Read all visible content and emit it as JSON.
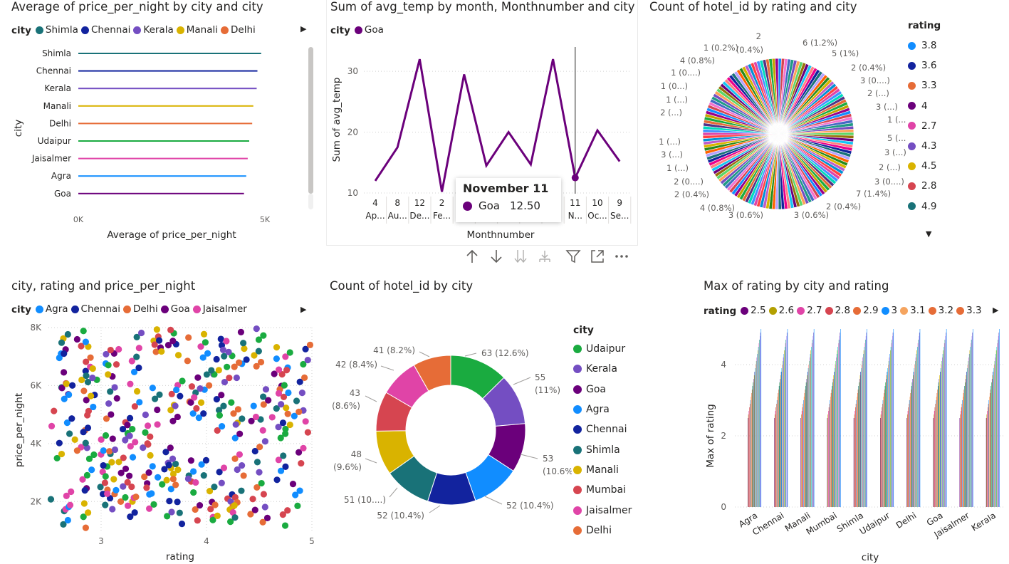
{
  "palette": {
    "Udaipur": "#1AAB40",
    "Kerala": "#744EC2",
    "Goa": "#6B007B",
    "Agra": "#118DFF",
    "Chennai": "#12239E",
    "Shimla": "#197278",
    "Manali": "#D9B300",
    "Mumbai": "#D64550",
    "Jaisalmer": "#E044A7",
    "Delhi": "#E66C37",
    "Kerala_pie": "#744EC2"
  },
  "chart1": {
    "title": "Average of price_per_night by city and city",
    "legend_title": "city",
    "legend": [
      "Shimla",
      "Chennai",
      "Kerala",
      "Manali",
      "Delhi"
    ],
    "chart_data": {
      "type": "bar",
      "orientation": "horizontal",
      "categories": [
        "Shimla",
        "Chennai",
        "Kerala",
        "Manali",
        "Delhi",
        "Udaipur",
        "Jaisalmer",
        "Agra",
        "Goa"
      ],
      "values": [
        4900,
        4800,
        4780,
        4690,
        4660,
        4580,
        4540,
        4500,
        4440
      ],
      "xlabel": "Average of price_per_night",
      "ylabel": "city",
      "xlim": [
        0,
        5000
      ],
      "xticks": [
        "0K",
        "5K"
      ]
    }
  },
  "chart2": {
    "title": "Sum of avg_temp by month, Monthnumber and city",
    "legend_title": "city",
    "legend": [
      "Goa"
    ],
    "chart_data": {
      "type": "line",
      "series": [
        {
          "name": "Goa",
          "values": [
            12,
            17.5,
            32,
            10.2,
            29.5,
            14.5,
            20,
            14.7,
            32,
            12.5,
            20.3,
            15.2
          ]
        }
      ],
      "categories": [
        {
          "num": "4",
          "month": "Ap..."
        },
        {
          "num": "8",
          "month": "Au..."
        },
        {
          "num": "12",
          "month": "De..."
        },
        {
          "num": "2",
          "month": "Fe..."
        },
        {
          "num": "",
          "month": ""
        },
        {
          "num": "",
          "month": ""
        },
        {
          "num": "",
          "month": ""
        },
        {
          "num": "",
          "month": ""
        },
        {
          "num": "",
          "month": ""
        },
        {
          "num": "11",
          "month": "N..."
        },
        {
          "num": "10",
          "month": "Oc..."
        },
        {
          "num": "9",
          "month": "Se..."
        }
      ],
      "ylabel": "Sum of avg_temp",
      "xlabel": "Monthnumber",
      "ylim": [
        10,
        34
      ],
      "yticks": [
        10,
        20,
        30
      ]
    },
    "tooltip": {
      "title": "November 11",
      "series": "Goa",
      "value": "12.50"
    }
  },
  "chart3": {
    "title": "Count of hotel_id by rating and city",
    "legend_title": "rating",
    "legend": [
      "3.8",
      "3.6",
      "3.3",
      "4",
      "2.7",
      "4.3",
      "4.5",
      "2.8",
      "4.9"
    ],
    "legend_colors": [
      "#118DFF",
      "#12239E",
      "#E66C37",
      "#6B007B",
      "#E044A7",
      "#744EC2",
      "#D9B300",
      "#D64550",
      "#197278"
    ],
    "chart_data": {
      "type": "pie",
      "labels": [
        "2",
        "6 (1.2%)",
        "5 (1%)",
        "2 (0.4%)",
        "3 (0....)",
        "2 (...)",
        "3 (...)",
        "1 (...)",
        "5 (...)",
        "3 (...)",
        "2 (...)",
        "3 (0....)",
        "7 (1.4%)",
        "2 (0.4%)",
        "3 (0.6%)",
        "3 (0.6%)",
        "4 (0.8%)",
        "2 (0.4%)",
        "2 (0....)",
        "1 (...)",
        "3 (...)",
        "1 (...)",
        "2 (...)",
        "1 (...)",
        "1 (0...)",
        "1 (0....)",
        "4 (0.8%)",
        "1 (0.2%)",
        "(0.4%)"
      ]
    }
  },
  "chart4": {
    "title": "city, rating and price_per_night",
    "legend_title": "city",
    "legend": [
      "Agra",
      "Chennai",
      "Delhi",
      "Goa",
      "Jaisalmer"
    ],
    "chart_data": {
      "type": "scatter",
      "xlabel": "rating",
      "ylabel": "price_per_night",
      "xlim": [
        2.5,
        5
      ],
      "ylim": [
        1000,
        8000
      ],
      "xticks": [
        3,
        4,
        5
      ],
      "yticks": [
        {
          "v": 2000,
          "t": "2K"
        },
        {
          "v": 4000,
          "t": "4K"
        },
        {
          "v": 6000,
          "t": "6K"
        },
        {
          "v": 8000,
          "t": "8K"
        }
      ],
      "points": [
        [
          2.8,
          7550
        ],
        [
          2.9,
          6400
        ],
        [
          3.1,
          2250
        ],
        [
          3.0,
          5200
        ],
        [
          3.3,
          6900
        ],
        [
          3.5,
          1900
        ],
        [
          3.6,
          7400
        ],
        [
          3.8,
          3100
        ],
        [
          3.9,
          6050
        ],
        [
          4.1,
          1750
        ],
        [
          4.2,
          4550
        ],
        [
          4.3,
          7200
        ],
        [
          4.5,
          2650
        ],
        [
          4.6,
          5600
        ],
        [
          4.8,
          3400
        ],
        [
          4.9,
          7050
        ],
        [
          2.6,
          3900
        ],
        [
          2.7,
          6050
        ],
        [
          3.2,
          3850
        ],
        [
          3.4,
          4650
        ],
        [
          3.7,
          2700
        ],
        [
          4.0,
          5250
        ],
        [
          4.4,
          3550
        ],
        [
          4.7,
          1450
        ],
        [
          3.3,
          2500
        ],
        [
          2.9,
          4100
        ],
        [
          4.2,
          6700
        ],
        [
          3.8,
          7800
        ],
        [
          2.7,
          2050
        ],
        [
          4.6,
          4400
        ],
        [
          3.0,
          7000
        ],
        [
          3.5,
          5550
        ],
        [
          4.0,
          3000
        ],
        [
          4.8,
          6200
        ],
        [
          2.6,
          5700
        ],
        [
          3.9,
          1600
        ],
        [
          4.3,
          5000
        ],
        [
          3.1,
          3300
        ],
        [
          2.8,
          1500
        ],
        [
          4.5,
          7700
        ],
        [
          3.4,
          7500
        ],
        [
          4.1,
          6300
        ],
        [
          3.6,
          3600
        ],
        [
          2.7,
          4700
        ],
        [
          4.9,
          2300
        ],
        [
          3.2,
          1900
        ],
        [
          4.4,
          1700
        ],
        [
          3.7,
          5000
        ],
        [
          2.9,
          2700
        ],
        [
          3.0,
          3500
        ],
        [
          4.2,
          2100
        ],
        [
          4.7,
          5300
        ],
        [
          3.3,
          4300
        ],
        [
          3.8,
          5600
        ],
        [
          2.6,
          7200
        ],
        [
          4.0,
          7300
        ],
        [
          3.5,
          2900
        ],
        [
          4.6,
          6800
        ],
        [
          3.1,
          5900
        ],
        [
          4.8,
          4700
        ]
      ]
    }
  },
  "chart5": {
    "title": "Count of hotel_id by city",
    "legend_title": "city",
    "chart_data": {
      "type": "pie",
      "donut": true,
      "categories": [
        "Udaipur",
        "Kerala",
        "Goa",
        "Agra",
        "Chennai",
        "Shimla",
        "Manali",
        "Mumbai",
        "Jaisalmer",
        "Delhi"
      ],
      "values": [
        63,
        55,
        53,
        52,
        52,
        51,
        48,
        43,
        42,
        41
      ],
      "labels": [
        "63 (12.6%)",
        "55|(11%)",
        "53|(10.6%)",
        "52 (10.4%)",
        "52 (10.4%)",
        "51 (10....)",
        "48|(9.6%)",
        "43|(8.6%)",
        "42 (8.4%)",
        "41 (8.2%)"
      ]
    }
  },
  "chart6": {
    "title": "Max of rating by city and rating",
    "legend_title": "rating",
    "legend": [
      "2.5",
      "2.6",
      "2.7",
      "2.8",
      "2.9",
      "3",
      "3.1",
      "3.2",
      "3.3"
    ],
    "legend_colors": [
      "#6B007B",
      "#B3A000",
      "#E044A7",
      "#D64550",
      "#E66C37",
      "#118DFF",
      "#F5A45F",
      "#E66C37",
      "#E66C37"
    ],
    "chart_data": {
      "type": "bar",
      "categories": [
        "Agra",
        "Chennai",
        "Manali",
        "Mumbai",
        "Shimla",
        "Udaipur",
        "Delhi",
        "Goa",
        "Jaisalmer",
        "Kerala"
      ],
      "series_note": "Each city has bars for every rating value 2.5..5.0; bar height equals rating",
      "rating_values": [
        2.5,
        2.6,
        2.7,
        2.8,
        2.9,
        3.0,
        3.1,
        3.2,
        3.3,
        3.4,
        3.5,
        3.6,
        3.7,
        3.8,
        3.9,
        4.0,
        4.1,
        4.2,
        4.3,
        4.4,
        4.5,
        4.6,
        4.7,
        4.8,
        4.9,
        5.0
      ],
      "ylabel": "Max of rating",
      "xlabel": "city",
      "ylim": [
        0,
        5
      ],
      "yticks": [
        0,
        2,
        4
      ]
    }
  }
}
